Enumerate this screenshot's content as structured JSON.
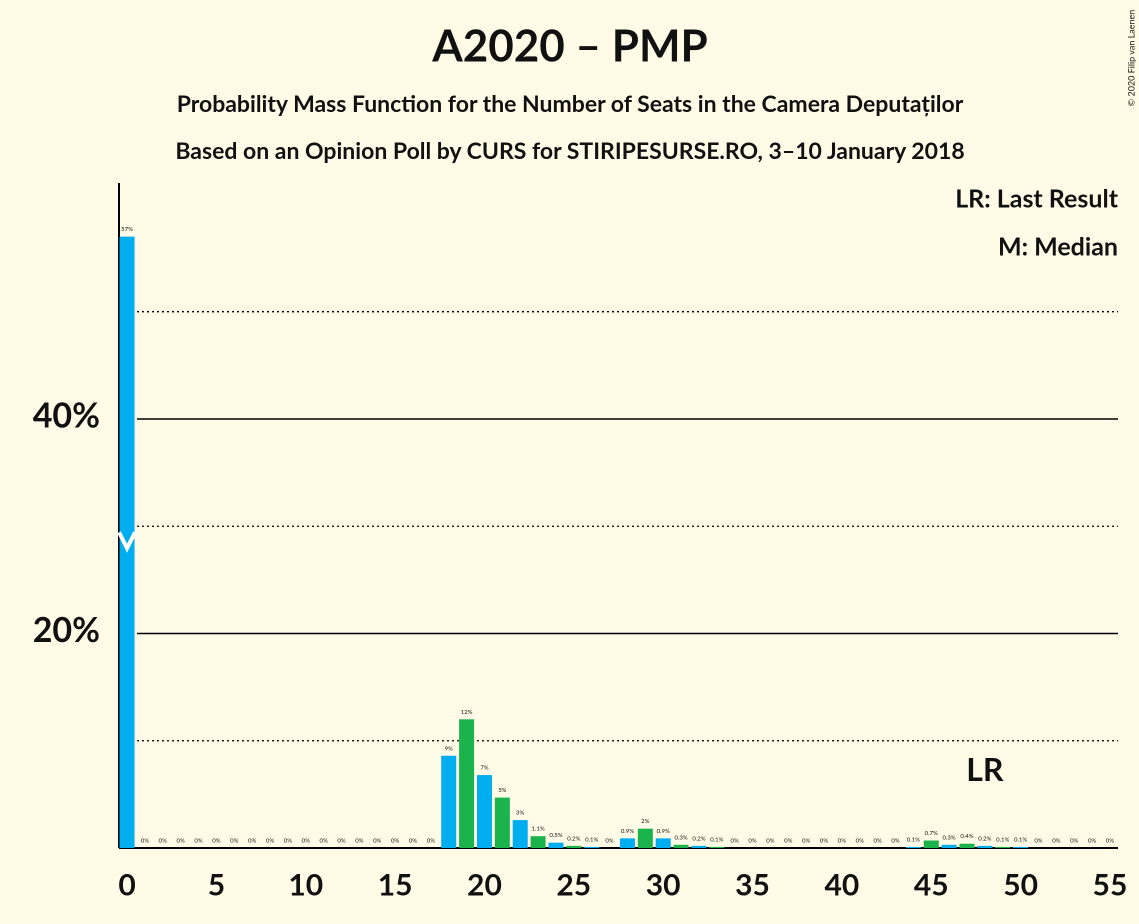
{
  "chart_data": {
    "type": "bar",
    "title": "A2020 – PMP",
    "subtitle": "Probability Mass Function for the Number of Seats in the Camera Deputaților",
    "subtitle2": "Based on an Opinion Poll by CURS for STIRIPESURSE.RO, 3–10 January 2018",
    "copyright": "© 2020 Filip van Laenen",
    "legend": [
      "LR: Last Result",
      "M: Median"
    ],
    "last_result": 48,
    "last_result_label": "LR",
    "median": 0,
    "colors": [
      "#00aeef",
      "#1bb34b"
    ],
    "x": [
      0,
      1,
      2,
      3,
      4,
      5,
      6,
      7,
      8,
      9,
      10,
      11,
      12,
      13,
      14,
      15,
      16,
      17,
      18,
      19,
      20,
      21,
      22,
      23,
      24,
      25,
      26,
      27,
      28,
      29,
      30,
      31,
      32,
      33,
      34,
      35,
      36,
      37,
      38,
      39,
      40,
      41,
      42,
      43,
      44,
      45,
      46,
      47,
      48,
      49,
      50,
      51,
      52,
      53,
      54,
      55
    ],
    "values": [
      57,
      0,
      0,
      0,
      0,
      0,
      0,
      0,
      0,
      0,
      0,
      0,
      0,
      0,
      0,
      0,
      0,
      0,
      8.6,
      12,
      6.8,
      4.7,
      2.6,
      1.1,
      0.5,
      0.2,
      0.1,
      0,
      0.9,
      1.8,
      0.9,
      0.3,
      0.2,
      0.1,
      0,
      0,
      0,
      0,
      0,
      0,
      0,
      0,
      0,
      0,
      0.1,
      0.7,
      0.3,
      0.4,
      0.2,
      0.1,
      0.1,
      0,
      0,
      0,
      0,
      0
    ],
    "value_labels": [
      "57%",
      "0%",
      "0%",
      "0%",
      "0%",
      "0%",
      "0%",
      "0%",
      "0%",
      "0%",
      "0%",
      "0%",
      "0%",
      "0%",
      "0%",
      "0%",
      "0%",
      "0%",
      "9%",
      "12%",
      "7%",
      "5%",
      "3%",
      "1.1%",
      "0.5%",
      "0.2%",
      "0.1%",
      "0%",
      "0.9%",
      "2%",
      "0.9%",
      "0.3%",
      "0.2%",
      "0.1%",
      "0%",
      "0%",
      "0%",
      "0%",
      "0%",
      "0%",
      "0%",
      "0%",
      "0%",
      "0%",
      "0.1%",
      "0.7%",
      "0.3%",
      "0.4%",
      "0.2%",
      "0.1%",
      "0.1%",
      "0%",
      "0%",
      "0%",
      "0%",
      "0%"
    ],
    "xlim": [
      -0.45,
      55.45
    ],
    "xticks": [
      0,
      5,
      10,
      15,
      20,
      25,
      30,
      35,
      40,
      45,
      50,
      55
    ],
    "ylim": [
      0,
      62
    ],
    "yticks": [
      {
        "value": 20,
        "label": "20%"
      },
      {
        "value": 40,
        "label": "40%"
      }
    ],
    "minor_yticks": [
      10,
      30,
      50
    ],
    "grid": true
  }
}
